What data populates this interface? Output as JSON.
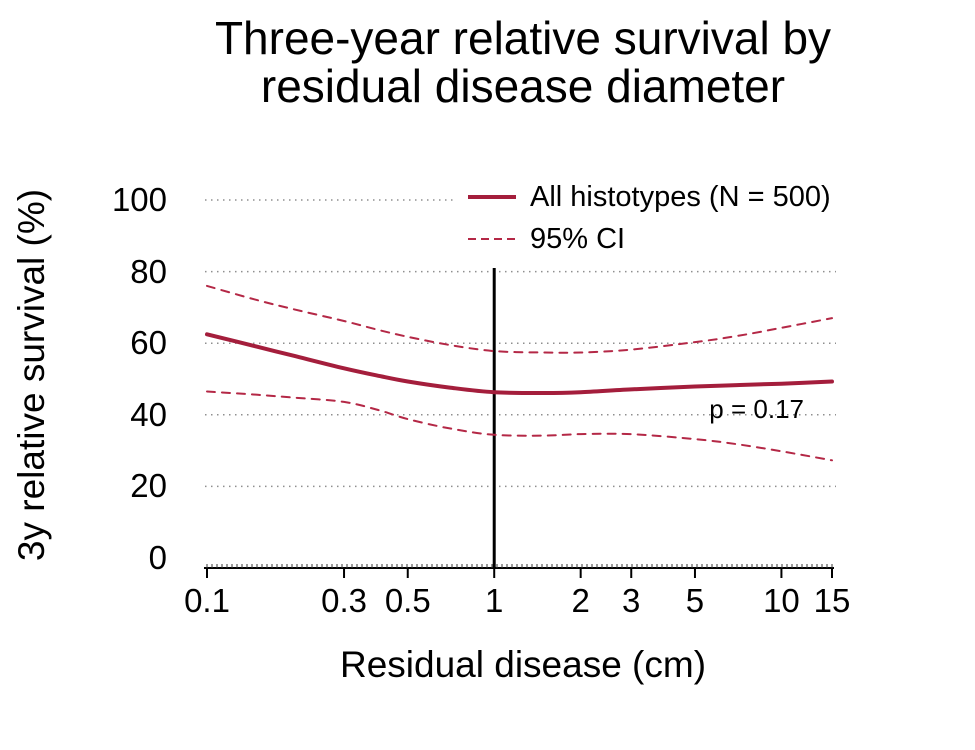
{
  "colors": {
    "line": "#A41E3C",
    "ci": "#B42846",
    "grid": "#8F8F8F",
    "axis": "#000000",
    "rug": "#3A3A3A",
    "reference_line": "#000000",
    "text": "#000000",
    "background": "#FFFFFF"
  },
  "chart_data": {
    "type": "line",
    "title": "Three-year relative survival by\nresidual disease diameter",
    "xlabel": "Residual disease (cm)",
    "ylabel": "3y relative survival (%)",
    "x_scale": "log",
    "xlim": [
      0.1,
      15
    ],
    "ylim": [
      0,
      100
    ],
    "x_ticks": [
      0.1,
      0.3,
      0.5,
      1,
      2,
      3,
      5,
      10,
      15
    ],
    "x_tick_labels": [
      "0.1",
      "0.3",
      "0.5",
      "1",
      "2",
      "3",
      "5",
      "10",
      "15"
    ],
    "y_ticks": [
      0,
      20,
      40,
      60,
      80,
      100
    ],
    "y_tick_labels": [
      "0",
      "20",
      "40",
      "60",
      "80",
      "100"
    ],
    "grid": "dotted horizontal at 20,40,60,80,100",
    "legend_position": "top-right",
    "reference_line": {
      "x": 1,
      "y_bottom": 0,
      "y_top": 81
    },
    "annotation": {
      "text": "p = 0.17",
      "x": 8.2,
      "y": 42
    },
    "legend": [
      {
        "label": "All histotypes (N = 500)",
        "style": "solid"
      },
      {
        "label": "95% CI",
        "style": "dashed"
      }
    ],
    "series": [
      {
        "name": "All histotypes (N = 500)",
        "style": "solid",
        "x": [
          0.1,
          0.15,
          0.2,
          0.3,
          0.4,
          0.5,
          0.7,
          1,
          1.5,
          2,
          3,
          5,
          7,
          10,
          15
        ],
        "y": [
          62.5,
          59,
          56.5,
          53,
          50.8,
          49.3,
          47.6,
          46.3,
          46.1,
          46.3,
          47.1,
          47.9,
          48.3,
          48.7,
          49.3
        ]
      },
      {
        "name": "95% CI upper",
        "style": "dashed",
        "x": [
          0.1,
          0.15,
          0.2,
          0.3,
          0.4,
          0.5,
          0.7,
          1,
          1.5,
          2,
          3,
          5,
          7,
          10,
          15
        ],
        "y": [
          76,
          72,
          69.5,
          66.2,
          63.6,
          61.8,
          59.5,
          57.8,
          57.4,
          57.4,
          58.2,
          60.3,
          62,
          64.3,
          67
        ]
      },
      {
        "name": "95% CI lower",
        "style": "dashed",
        "x": [
          0.1,
          0.15,
          0.2,
          0.3,
          0.4,
          0.5,
          0.7,
          1,
          1.5,
          2,
          3,
          5,
          7,
          10,
          15
        ],
        "y": [
          46.5,
          45.6,
          44.8,
          43.6,
          41.2,
          38.8,
          36.2,
          34.4,
          34.2,
          34.6,
          34.6,
          33.2,
          31.8,
          29.8,
          27.3
        ]
      }
    ]
  }
}
